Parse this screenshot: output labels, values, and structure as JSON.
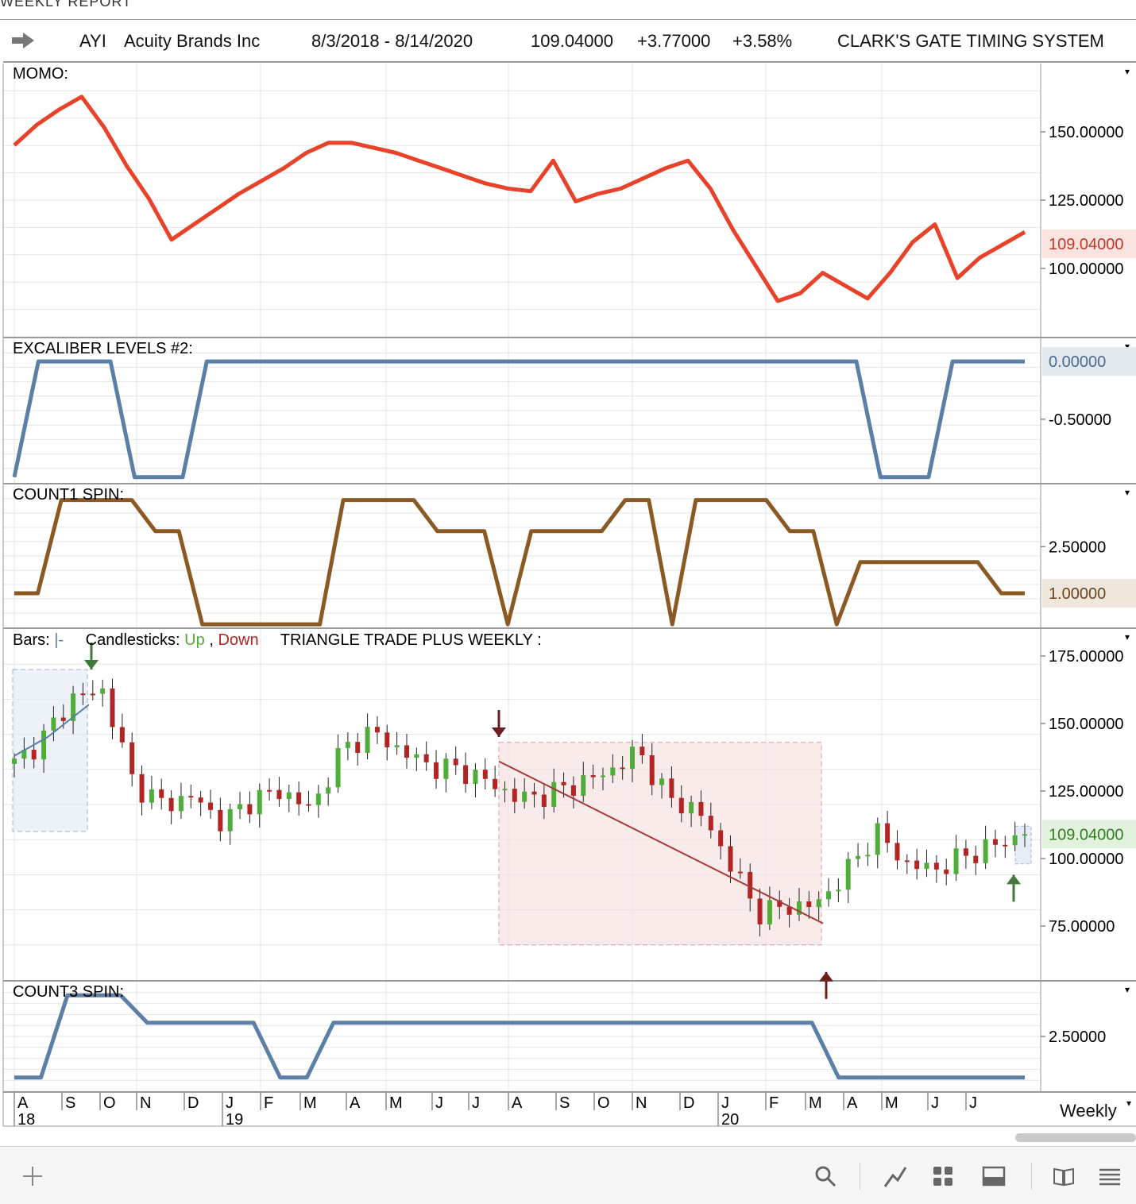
{
  "report_title": "WEEKLY REPORT",
  "header": {
    "symbol": "AYI",
    "company": "Acuity Brands Inc",
    "date_range": "8/3/2018 - 8/14/2020",
    "last": "109.04000",
    "change": "+3.77000",
    "change_pct": "+3.58%",
    "system": "CLARK'S GATE TIMING SYSTEM"
  },
  "colors": {
    "momo": "#e8432a",
    "excaliber": "#5b7fa6",
    "count1": "#8b5a24",
    "count3": "#5b7fa6",
    "up": "#4fae3a",
    "down": "#b32525",
    "bar_line": "#5b7fa6",
    "grid": "#e4e4e4",
    "border": "#9a9a9a"
  },
  "panels": {
    "momo": {
      "label": "MOMO:",
      "ticks": [
        "150.00000",
        "125.00000",
        "100.00000"
      ],
      "badge": "109.04000"
    },
    "excaliber": {
      "label": "EXCALIBER LEVELS #2:",
      "ticks": [
        "-0.50000"
      ],
      "badge": "0.00000"
    },
    "count1": {
      "label": "COUNT1 SPIN:",
      "ticks": [
        "2.50000"
      ],
      "badge": "1.00000"
    },
    "price": {
      "bars_label": "Bars:",
      "bars_glyph": "|-",
      "candles_label": "Candlesticks:",
      "up_label": "Up",
      "comma": ",",
      "down_label": "Down",
      "indicator_label": "TRIANGLE TRADE PLUS WEEKLY :",
      "ticks": [
        "175.00000",
        "150.00000",
        "125.00000",
        "100.00000",
        "75.00000"
      ],
      "badge": "109.04000"
    },
    "count3": {
      "label": "COUNT3 SPIN:",
      "ticks": [
        "2.50000"
      ]
    }
  },
  "x_axis": {
    "months": [
      "A",
      "S",
      "O",
      "N",
      "D",
      "J",
      "F",
      "M",
      "A",
      "M",
      "J",
      "J",
      "A",
      "S",
      "O",
      "N",
      "D",
      "J",
      "F",
      "M",
      "A",
      "M",
      "J",
      "J"
    ],
    "years": [
      "18",
      "19",
      "20"
    ],
    "period": "Weekly"
  },
  "footer": {
    "icons": [
      "plus-icon",
      "search-icon",
      "draw-line-icon",
      "grid-layout-icon",
      "panel-layout-icon",
      "book-icon",
      "menu-icon"
    ]
  },
  "chart_data": [
    {
      "type": "line",
      "name": "MOMO",
      "series": [
        {
          "values": [
            143,
            151,
            157,
            162,
            150,
            135,
            122,
            106,
            112,
            118,
            124,
            129,
            134,
            140,
            144,
            144,
            142,
            140,
            137,
            134,
            131,
            128,
            126,
            125,
            137,
            121,
            124,
            126,
            130,
            134,
            137,
            126,
            110,
            96,
            82,
            85,
            93,
            88,
            83,
            93,
            105,
            112,
            91,
            99,
            104,
            109
          ]
        }
      ],
      "yticks": [
        100,
        125,
        150
      ]
    },
    {
      "type": "line",
      "name": "EXCALIBER LEVELS #2",
      "series": [
        {
          "values": [
            -1,
            0,
            0,
            0,
            0,
            -1,
            -1,
            -1,
            0,
            0,
            0,
            0,
            0,
            0,
            0,
            0,
            0,
            0,
            0,
            0,
            0,
            0,
            0,
            0,
            0,
            0,
            0,
            0,
            0,
            0,
            0,
            0,
            0,
            0,
            0,
            0,
            -1,
            -1,
            -1,
            0,
            0,
            0,
            0
          ]
        }
      ],
      "yticks": [
        0,
        -0.5
      ]
    },
    {
      "type": "line",
      "name": "COUNT1 SPIN",
      "series": [
        {
          "values": [
            1,
            1,
            4,
            4,
            4,
            4,
            3,
            3,
            0,
            0,
            0,
            0,
            0,
            0,
            4,
            4,
            4,
            4,
            3,
            3,
            3,
            0,
            3,
            3,
            3,
            3,
            4,
            4,
            0,
            4,
            4,
            4,
            4,
            3,
            3,
            0,
            2,
            2,
            2,
            2,
            2,
            2,
            1,
            1
          ]
        }
      ],
      "yticks": [
        1,
        2.5
      ]
    },
    {
      "type": "candlestick",
      "name": "AYI Weekly",
      "x": [
        "2018-08",
        "2018-09",
        "2018-10",
        "2018-11",
        "2018-12",
        "2019-01",
        "2019-02",
        "2019-03",
        "2019-04",
        "2019-05",
        "2019-06",
        "2019-07",
        "2019-08",
        "2019-09",
        "2019-10",
        "2019-11",
        "2019-12",
        "2020-01",
        "2020-02",
        "2020-03",
        "2020-04",
        "2020-05",
        "2020-06",
        "2020-07",
        "2020-08"
      ],
      "close_path": [
        135,
        145,
        160,
        162,
        128,
        120,
        123,
        113,
        122,
        125,
        118,
        140,
        147,
        140,
        134,
        133,
        128,
        122,
        124,
        128,
        132,
        140,
        122,
        118,
        100,
        80,
        82,
        83,
        95,
        110,
        98,
        96,
        101,
        105,
        109.04
      ],
      "yticks": [
        75,
        100,
        125,
        150,
        175
      ],
      "last": 109.04
    },
    {
      "type": "line",
      "name": "COUNT3 SPIN",
      "series": [
        {
          "values": [
            1,
            1,
            4,
            4,
            4,
            3,
            3,
            3,
            3,
            3,
            1,
            1,
            3,
            3,
            3,
            3,
            3,
            3,
            3,
            3,
            3,
            3,
            3,
            3,
            3,
            3,
            3,
            3,
            3,
            3,
            3,
            1,
            1,
            1,
            1,
            1,
            1,
            1,
            1
          ]
        }
      ],
      "yticks": [
        2.5
      ]
    }
  ]
}
